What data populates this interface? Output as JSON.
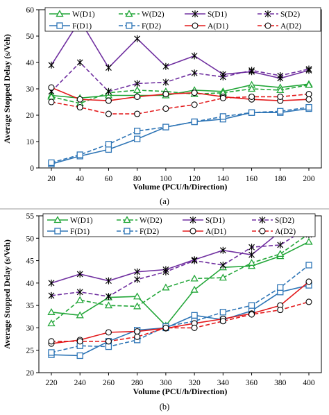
{
  "chart_data": [
    {
      "type": "line",
      "panel_label": "(a)",
      "xlabel": "Volume (PCU/h/Direction)",
      "ylabel": "Average Stopped Delay (s/Veh)",
      "x": [
        20,
        40,
        60,
        80,
        100,
        120,
        140,
        160,
        180,
        200
      ],
      "xlim": [
        20,
        200
      ],
      "ylim": [
        0,
        60
      ],
      "yticks": [
        0,
        10,
        20,
        30,
        40,
        50,
        60
      ],
      "xticks": [
        20,
        40,
        60,
        80,
        100,
        120,
        140,
        160,
        180,
        200
      ],
      "grid": false,
      "legend_position": "top-right",
      "series": [
        {
          "name": "W(D1)",
          "color": "#22a638",
          "dash": "solid",
          "marker": "triangle",
          "values": [
            27.5,
            26.5,
            27.5,
            27.5,
            27.5,
            29.5,
            29.0,
            31.5,
            30.5,
            31.8
          ]
        },
        {
          "name": "W(D2)",
          "color": "#22a638",
          "dash": "dashed",
          "marker": "triangle",
          "values": [
            27.0,
            24.5,
            28.5,
            29.5,
            29.0,
            28.0,
            28.5,
            30.0,
            29.5,
            31.5
          ]
        },
        {
          "name": "S(D1)",
          "color": "#7030a0",
          "dash": "solid",
          "marker": "star",
          "values": [
            39.0,
            56.0,
            38.0,
            49.0,
            38.5,
            42.5,
            35.5,
            36.5,
            34.0,
            37.0
          ]
        },
        {
          "name": "S(D2)",
          "color": "#7030a0",
          "dash": "dashed",
          "marker": "star",
          "values": [
            29.0,
            40.0,
            29.0,
            32.0,
            32.5,
            36.0,
            34.5,
            37.0,
            35.0,
            37.5
          ]
        },
        {
          "name": "F(D1)",
          "color": "#2e75b6",
          "dash": "solid",
          "marker": "square",
          "values": [
            1.5,
            4.5,
            7.0,
            11.0,
            15.5,
            17.5,
            18.5,
            21.0,
            21.0,
            22.5
          ]
        },
        {
          "name": "F(D2)",
          "color": "#2e75b6",
          "dash": "dashed",
          "marker": "square",
          "values": [
            2.0,
            5.0,
            9.0,
            14.0,
            15.5,
            17.5,
            19.5,
            21.0,
            21.5,
            23.0
          ]
        },
        {
          "name": "A(D1)",
          "color": "#e31a1c",
          "dash": "solid",
          "marker": "circle",
          "values": [
            30.5,
            26.0,
            25.5,
            27.0,
            28.0,
            28.5,
            27.0,
            26.0,
            25.5,
            26.0
          ]
        },
        {
          "name": "A(D2)",
          "color": "#e31a1c",
          "dash": "dashed",
          "marker": "circle",
          "values": [
            25.0,
            23.0,
            20.5,
            20.5,
            22.5,
            24.0,
            26.5,
            27.0,
            27.0,
            28.0
          ]
        }
      ]
    },
    {
      "type": "line",
      "panel_label": "(b)",
      "xlabel": "Volume (PCU/h/Direction)",
      "ylabel": "Average Stopped Delay (s/Veh)",
      "x": [
        220,
        240,
        260,
        280,
        300,
        320,
        340,
        360,
        380,
        400
      ],
      "xlim": [
        220,
        400
      ],
      "ylim": [
        20,
        55
      ],
      "yticks": [
        20,
        25,
        30,
        35,
        40,
        45,
        50,
        55
      ],
      "xticks": [
        220,
        240,
        260,
        280,
        300,
        320,
        340,
        360,
        380,
        400
      ],
      "grid": false,
      "legend_position": "top",
      "series": [
        {
          "name": "W(D1)",
          "color": "#22a638",
          "dash": "solid",
          "marker": "triangle",
          "values": [
            33.5,
            32.8,
            36.8,
            37.0,
            30.5,
            38.5,
            43.5,
            43.8,
            46.0,
            49.2
          ]
        },
        {
          "name": "W(D2)",
          "color": "#22a638",
          "dash": "dashed",
          "marker": "triangle",
          "values": [
            31.0,
            36.2,
            35.0,
            34.8,
            39.0,
            41.0,
            41.2,
            44.5,
            46.5,
            51.0
          ]
        },
        {
          "name": "S(D1)",
          "color": "#7030a0",
          "dash": "solid",
          "marker": "star",
          "values": [
            40.0,
            42.0,
            40.5,
            42.5,
            43.0,
            45.2,
            47.3,
            46.3,
            51.5,
            50.8
          ]
        },
        {
          "name": "S(D2)",
          "color": "#7030a0",
          "dash": "dashed",
          "marker": "star",
          "values": [
            37.2,
            38.0,
            37.0,
            40.8,
            42.5,
            45.0,
            44.0,
            48.0,
            48.5,
            52.5
          ]
        },
        {
          "name": "F(D1)",
          "color": "#2e75b6",
          "dash": "solid",
          "marker": "square",
          "values": [
            24.0,
            23.8,
            27.0,
            29.5,
            30.0,
            32.8,
            31.8,
            33.8,
            38.0,
            39.5
          ]
        },
        {
          "name": "F(D2)",
          "color": "#2e75b6",
          "dash": "dashed",
          "marker": "square",
          "values": [
            24.5,
            26.0,
            25.8,
            27.3,
            30.3,
            31.5,
            33.5,
            35.0,
            39.0,
            44.0
          ]
        },
        {
          "name": "A(D1)",
          "color": "#e31a1c",
          "dash": "solid",
          "marker": "circle",
          "values": [
            26.5,
            27.3,
            29.0,
            29.2,
            29.9,
            31.0,
            32.0,
            33.2,
            35.0,
            40.3
          ]
        },
        {
          "name": "A(D2)",
          "color": "#e31a1c",
          "dash": "dashed",
          "marker": "circle",
          "values": [
            27.0,
            27.0,
            27.0,
            28.0,
            30.0,
            30.0,
            31.5,
            33.0,
            34.0,
            35.8
          ]
        }
      ]
    }
  ]
}
